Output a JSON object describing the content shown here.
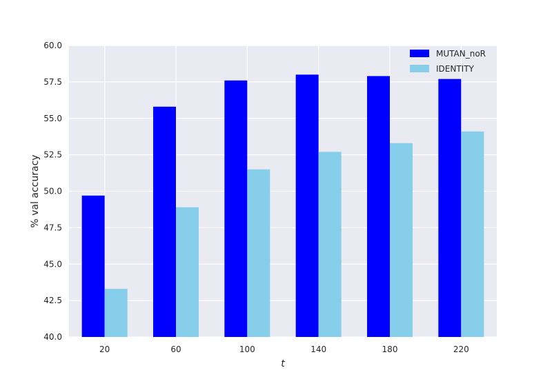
{
  "chart_data": {
    "type": "bar",
    "title": "",
    "xlabel": "t",
    "ylabel": "% val accuracy",
    "categories": [
      "20",
      "60",
      "100",
      "140",
      "180",
      "220"
    ],
    "ylim": [
      40.0,
      60.0
    ],
    "yticks": [
      "40.0",
      "42.5",
      "45.0",
      "47.5",
      "50.0",
      "52.5",
      "55.0",
      "57.5",
      "60.0"
    ],
    "grid": true,
    "legend_position": "top-right",
    "series": [
      {
        "name": "MUTAN_noR",
        "color": "#0000ff",
        "values": [
          49.7,
          55.8,
          57.6,
          58.0,
          57.9,
          57.7
        ]
      },
      {
        "name": "IDENTITY",
        "color": "#87ceeb",
        "values": [
          43.3,
          48.9,
          51.5,
          52.7,
          53.3,
          54.1
        ]
      }
    ],
    "background_color": "#eaeaf2",
    "grid_color": "#ffffff"
  }
}
